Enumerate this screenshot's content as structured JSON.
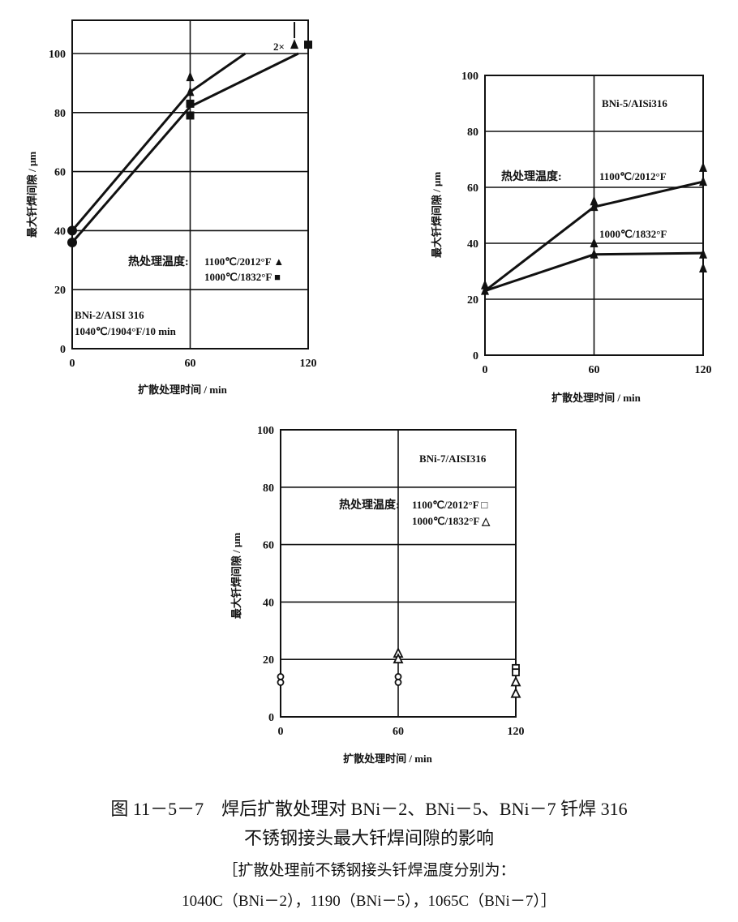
{
  "chart_data": [
    {
      "type": "line",
      "ylabel": "最大钎焊间隙 / μm",
      "xlabel": "扩散处理时间 / min",
      "xlim": [
        0,
        120
      ],
      "ylim": [
        0,
        100
      ],
      "xticks": [
        "0",
        "60",
        "120"
      ],
      "yticks": [
        "0",
        "20",
        "40",
        "60",
        "80",
        "100"
      ],
      "grid": true,
      "annotations": [
        "BNi-2/AISI 316",
        "1040℃/1904°F/10 min",
        "2×"
      ],
      "legend_title": "热处理温度:",
      "series": [
        {
          "name": "1100℃/2012°F",
          "marker": "filled-triangle",
          "line": [
            [
              0,
              40
            ],
            [
              60,
              87
            ],
            [
              88,
              100
            ]
          ],
          "points": [
            [
              0,
              40
            ],
            [
              60,
              92
            ],
            [
              60,
              87
            ],
            [
              113,
              103
            ]
          ]
        },
        {
          "name": "1000℃/1832°F",
          "marker": "filled-square",
          "line": [
            [
              0,
              36
            ],
            [
              60,
              82
            ],
            [
              115,
              100
            ]
          ],
          "points": [
            [
              0,
              36
            ],
            [
              60,
              83
            ],
            [
              60,
              79
            ],
            [
              120,
              103
            ]
          ]
        }
      ]
    },
    {
      "type": "line",
      "ylabel": "最大钎焊间隙 / μm",
      "xlabel": "扩散处理时间 / min",
      "xlim": [
        0,
        120
      ],
      "ylim": [
        0,
        100
      ],
      "xticks": [
        "0",
        "60",
        "120"
      ],
      "yticks": [
        "0",
        "20",
        "40",
        "60",
        "80",
        "100"
      ],
      "grid": true,
      "annotations": [
        "BNi-5/AISi316"
      ],
      "legend_title": "热处理温度:",
      "series": [
        {
          "name": "1100℃/2012°F",
          "marker": "filled-triangle",
          "line": [
            [
              0,
              23
            ],
            [
              60,
              53
            ],
            [
              120,
              62
            ]
          ],
          "points": [
            [
              0,
              25
            ],
            [
              60,
              55
            ],
            [
              60,
              53
            ],
            [
              120,
              67
            ],
            [
              120,
              62
            ]
          ]
        },
        {
          "name": "1000℃/1832°F",
          "marker": "filled-triangle",
          "line": [
            [
              0,
              23
            ],
            [
              60,
              36
            ],
            [
              120,
              36.5
            ]
          ],
          "points": [
            [
              0,
              23
            ],
            [
              60,
              40
            ],
            [
              60,
              36
            ],
            [
              120,
              36
            ],
            [
              120,
              31
            ]
          ]
        }
      ]
    },
    {
      "type": "scatter",
      "ylabel": "最大钎焊间隙 / μm",
      "xlabel": "扩散处理时间 / min",
      "xlim": [
        0,
        120
      ],
      "ylim": [
        0,
        100
      ],
      "xticks": [
        "0",
        "60",
        "120"
      ],
      "yticks": [
        "0",
        "20",
        "40",
        "60",
        "80",
        "100"
      ],
      "grid": true,
      "annotations": [
        "BNi-7/AISI316"
      ],
      "legend_title": "热处理温度:",
      "series": [
        {
          "name": "1100℃/2012°F",
          "marker": "open-square",
          "points": [
            [
              120,
              17
            ],
            [
              120,
              15.5
            ]
          ]
        },
        {
          "name": "1000℃/1832°F",
          "marker": "open-triangle",
          "points": [
            [
              60,
              22
            ],
            [
              60,
              20
            ],
            [
              120,
              12
            ],
            [
              120,
              8
            ]
          ]
        },
        {
          "marker": "open-circle",
          "points": [
            [
              0,
              14
            ],
            [
              0,
              12
            ],
            [
              60,
              14
            ],
            [
              60,
              12
            ]
          ]
        }
      ]
    }
  ],
  "caption": {
    "line1": "图 11－5－7　焊后扩散处理对 BNi－2、BNi－5、BNi－7 钎焊 316",
    "line2": "不锈钢接头最大钎焊间隙的影响",
    "line3": "［扩散处理前不锈钢接头钎焊温度分别为：",
    "line4": "1040C（BNi－2），1190（BNi－5），1065C（BNi－7）］"
  }
}
